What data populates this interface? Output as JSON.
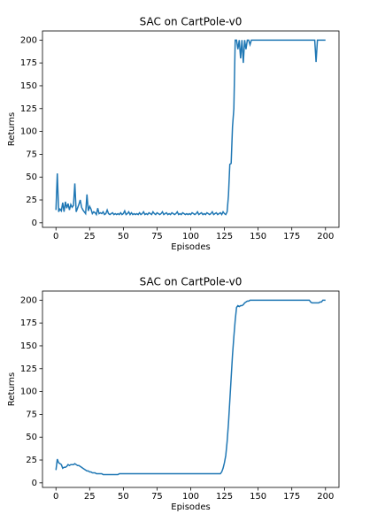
{
  "chart_data": [
    {
      "type": "line",
      "title": "SAC on CartPole-v0",
      "x_label": "Episodes",
      "y_label": "Returns",
      "color": "#1f77b4",
      "xlim": [
        -10,
        210
      ],
      "ylim": [
        -5,
        210
      ],
      "xticks": [
        0,
        25,
        50,
        75,
        100,
        125,
        150,
        175,
        200
      ],
      "yticks": [
        0,
        25,
        50,
        75,
        100,
        125,
        150,
        175,
        200
      ],
      "x": [
        0,
        1,
        2,
        3,
        4,
        5,
        6,
        7,
        8,
        9,
        10,
        11,
        12,
        13,
        14,
        15,
        16,
        17,
        18,
        19,
        20,
        21,
        22,
        23,
        24,
        25,
        26,
        27,
        28,
        29,
        30,
        31,
        32,
        33,
        34,
        35,
        36,
        37,
        38,
        39,
        40,
        41,
        42,
        43,
        44,
        45,
        46,
        47,
        48,
        49,
        50,
        51,
        52,
        53,
        54,
        55,
        56,
        57,
        58,
        59,
        60,
        61,
        62,
        63,
        64,
        65,
        66,
        67,
        68,
        69,
        70,
        71,
        72,
        73,
        74,
        75,
        76,
        77,
        78,
        79,
        80,
        81,
        82,
        83,
        84,
        85,
        86,
        87,
        88,
        89,
        90,
        91,
        92,
        93,
        94,
        95,
        96,
        97,
        98,
        99,
        100,
        101,
        102,
        103,
        104,
        105,
        106,
        107,
        108,
        109,
        110,
        111,
        112,
        113,
        114,
        115,
        116,
        117,
        118,
        119,
        120,
        121,
        122,
        123,
        124,
        125,
        126,
        127,
        128,
        129,
        130,
        131,
        132,
        133,
        134,
        135,
        136,
        137,
        138,
        139,
        140,
        141,
        142,
        143,
        144,
        145,
        146,
        147,
        148,
        149,
        150,
        151,
        152,
        153,
        154,
        155,
        156,
        157,
        158,
        159,
        160,
        161,
        162,
        163,
        164,
        165,
        166,
        167,
        168,
        169,
        170,
        171,
        172,
        173,
        174,
        175,
        176,
        177,
        178,
        179,
        180,
        181,
        182,
        183,
        184,
        185,
        186,
        187,
        188,
        189,
        190,
        191,
        192,
        193,
        194,
        195,
        196,
        197,
        198,
        199,
        200
      ],
      "values": [
        14,
        54,
        12,
        15,
        13,
        22,
        12,
        23,
        16,
        21,
        14,
        20,
        17,
        19,
        43,
        12,
        16,
        20,
        25,
        17,
        14,
        12,
        10,
        31,
        13,
        18,
        15,
        10,
        12,
        11,
        9,
        16,
        10,
        11,
        10,
        12,
        9,
        10,
        14,
        10,
        9,
        10,
        11,
        9,
        10,
        9,
        10,
        9,
        11,
        9,
        10,
        13,
        9,
        10,
        12,
        9,
        11,
        9,
        10,
        9,
        10,
        9,
        11,
        9,
        10,
        12,
        9,
        10,
        9,
        11,
        10,
        9,
        12,
        10,
        9,
        11,
        10,
        9,
        10,
        12,
        9,
        10,
        11,
        9,
        10,
        9,
        11,
        10,
        9,
        10,
        12,
        9,
        10,
        9,
        11,
        10,
        9,
        10,
        9,
        10,
        9,
        11,
        10,
        9,
        10,
        12,
        9,
        10,
        11,
        9,
        10,
        9,
        11,
        10,
        9,
        10,
        12,
        9,
        10,
        11,
        9,
        10,
        11,
        9,
        12,
        10,
        9,
        12,
        30,
        64,
        65,
        105,
        125,
        200,
        200,
        190,
        200,
        180,
        200,
        175,
        200,
        190,
        200,
        200,
        195,
        200,
        200,
        200,
        200,
        200,
        200,
        200,
        200,
        200,
        200,
        200,
        200,
        200,
        200,
        200,
        200,
        200,
        200,
        200,
        200,
        200,
        200,
        200,
        200,
        200,
        200,
        200,
        200,
        200,
        200,
        200,
        200,
        200,
        200,
        200,
        200,
        200,
        200,
        200,
        200,
        200,
        200,
        200,
        200,
        200,
        200,
        200,
        200,
        176,
        200,
        200,
        200,
        200,
        200,
        200,
        200
      ]
    },
    {
      "type": "line",
      "title": "SAC on CartPole-v0",
      "x_label": "Episodes",
      "y_label": "Returns",
      "color": "#1f77b4",
      "xlim": [
        -10,
        210
      ],
      "ylim": [
        -5,
        210
      ],
      "xticks": [
        0,
        25,
        50,
        75,
        100,
        125,
        150,
        175,
        200
      ],
      "yticks": [
        0,
        25,
        50,
        75,
        100,
        125,
        150,
        175,
        200
      ],
      "x": [
        0,
        1,
        2,
        3,
        4,
        5,
        6,
        7,
        8,
        9,
        10,
        11,
        12,
        13,
        14,
        15,
        16,
        17,
        18,
        19,
        20,
        21,
        22,
        23,
        24,
        25,
        26,
        27,
        28,
        29,
        30,
        31,
        32,
        33,
        34,
        35,
        36,
        37,
        38,
        39,
        40,
        41,
        42,
        43,
        44,
        45,
        46,
        47,
        48,
        49,
        50,
        51,
        52,
        53,
        54,
        55,
        56,
        57,
        58,
        59,
        60,
        61,
        62,
        63,
        64,
        65,
        66,
        67,
        68,
        69,
        70,
        71,
        72,
        73,
        74,
        75,
        76,
        77,
        78,
        79,
        80,
        81,
        82,
        83,
        84,
        85,
        86,
        87,
        88,
        89,
        90,
        91,
        92,
        93,
        94,
        95,
        96,
        97,
        98,
        99,
        100,
        101,
        102,
        103,
        104,
        105,
        106,
        107,
        108,
        109,
        110,
        111,
        112,
        113,
        114,
        115,
        116,
        117,
        118,
        119,
        120,
        121,
        122,
        123,
        124,
        125,
        126,
        127,
        128,
        129,
        130,
        131,
        132,
        133,
        134,
        135,
        136,
        137,
        138,
        139,
        140,
        141,
        142,
        143,
        144,
        145,
        146,
        147,
        148,
        149,
        150,
        151,
        152,
        153,
        154,
        155,
        156,
        157,
        158,
        159,
        160,
        161,
        162,
        163,
        164,
        165,
        166,
        167,
        168,
        169,
        170,
        171,
        172,
        173,
        174,
        175,
        176,
        177,
        178,
        179,
        180,
        181,
        182,
        183,
        184,
        185,
        186,
        187,
        188,
        189,
        190,
        191,
        192,
        193,
        194,
        195,
        196,
        197,
        198,
        199,
        200
      ],
      "values": [
        14,
        26,
        22,
        21,
        20,
        16,
        17,
        17,
        18,
        20,
        19,
        20,
        20,
        20,
        21,
        20,
        19,
        19,
        18,
        17,
        16,
        15,
        14,
        13,
        13,
        12,
        12,
        11,
        11,
        11,
        10,
        10,
        10,
        10,
        10,
        9,
        9,
        9,
        9,
        9,
        9,
        9,
        9,
        9,
        9,
        9,
        9,
        10,
        10,
        10,
        10,
        10,
        10,
        10,
        10,
        10,
        10,
        10,
        10,
        10,
        10,
        10,
        10,
        10,
        10,
        10,
        10,
        10,
        10,
        10,
        10,
        10,
        10,
        10,
        10,
        10,
        10,
        10,
        10,
        10,
        10,
        10,
        10,
        10,
        10,
        10,
        10,
        10,
        10,
        10,
        10,
        10,
        10,
        10,
        10,
        10,
        10,
        10,
        10,
        10,
        10,
        10,
        10,
        10,
        10,
        10,
        10,
        10,
        10,
        10,
        10,
        10,
        10,
        10,
        10,
        10,
        10,
        10,
        10,
        10,
        10,
        10,
        10,
        12,
        16,
        22,
        30,
        45,
        65,
        90,
        115,
        140,
        160,
        178,
        192,
        194,
        193,
        194,
        194,
        195,
        197,
        198,
        199,
        199,
        200,
        200,
        200,
        200,
        200,
        200,
        200,
        200,
        200,
        200,
        200,
        200,
        200,
        200,
        200,
        200,
        200,
        200,
        200,
        200,
        200,
        200,
        200,
        200,
        200,
        200,
        200,
        200,
        200,
        200,
        200,
        200,
        200,
        200,
        200,
        200,
        200,
        200,
        200,
        200,
        200,
        200,
        200,
        200,
        200,
        198,
        197,
        197,
        197,
        197,
        197,
        197,
        198,
        198,
        200,
        200,
        200
      ]
    }
  ]
}
